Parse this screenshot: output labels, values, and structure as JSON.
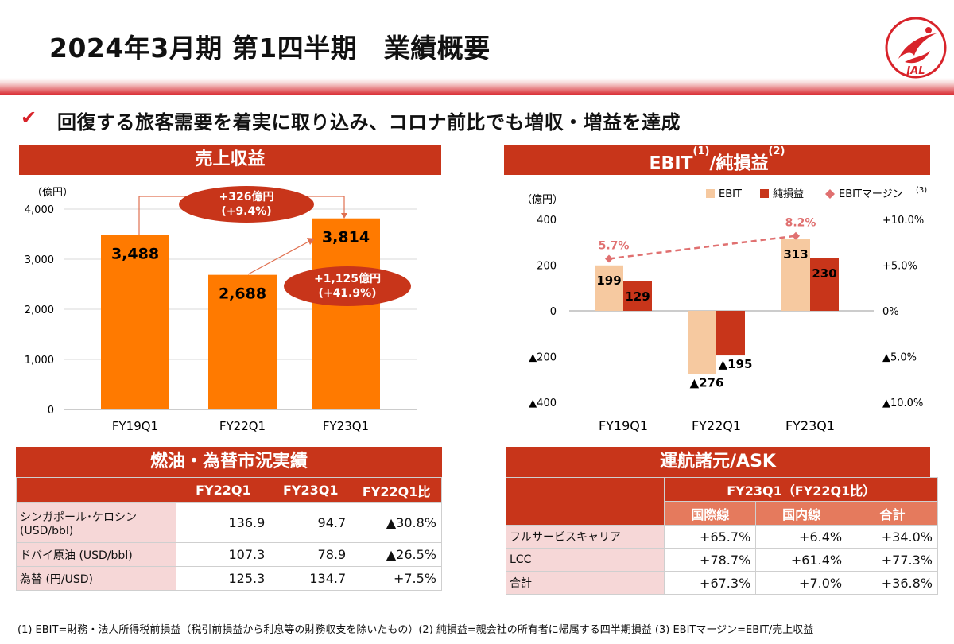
{
  "page": {
    "title": "2024年3月期 第1四半期　業績概要",
    "subtitle": "回復する旅客需要を着実に取り込み、コロナ前比でも増収・増益を達成",
    "logo_text": "JAL",
    "footnote": "(1) EBIT=財務・法人所得税前損益（税引前損益から利息等の財務収支を除いたもの）(2) 純損益=親会社の所有者に帰属する四半期損益 (3) EBITマージン=EBIT/売上収益"
  },
  "revenue": {
    "section_title": "売上収益",
    "unit": "（億円）",
    "callout_top": [
      "+326億円",
      "(+9.4%)"
    ],
    "callout_mid": [
      "+1,125億円",
      "(+41.9%)"
    ]
  },
  "ebit": {
    "section_title": "EBIT",
    "section_sup1": "(1)",
    "section_title2": "/純損益",
    "section_sup2": "(2)",
    "unit": "（億円）",
    "legend": [
      "EBIT",
      "純損益",
      "EBITマージン"
    ],
    "legend_sup": "(3)"
  },
  "chart_data": [
    {
      "type": "bar",
      "title": "売上収益",
      "ylabel": "（億円）",
      "categories": [
        "FY19Q1",
        "FY22Q1",
        "FY23Q1"
      ],
      "values": [
        3488,
        2688,
        3814
      ],
      "labels": [
        "3,488",
        "2,688",
        "3,814"
      ],
      "ylim": [
        0,
        4000
      ],
      "yticks": [
        "0",
        "1,000",
        "2,000",
        "3,000",
        "4,000"
      ],
      "grid": true,
      "color": "#ff7a00"
    },
    {
      "type": "bar",
      "title": "EBIT/純損益",
      "ylabel": "（億円）",
      "categories": [
        "FY19Q1",
        "FY22Q1",
        "FY23Q1"
      ],
      "series": [
        {
          "name": "EBIT",
          "values": [
            199,
            -276,
            313
          ],
          "labels": [
            "199",
            "▲276",
            "313"
          ],
          "color": "#f6c9a0"
        },
        {
          "name": "純損益",
          "values": [
            129,
            -195,
            230
          ],
          "labels": [
            "129",
            "▲195",
            "230"
          ],
          "color": "#c8351a"
        },
        {
          "name": "EBITマージン",
          "type": "line",
          "axis": "right",
          "values": [
            5.7,
            null,
            8.2
          ],
          "labels": [
            "5.7%",
            "",
            "8.2%"
          ],
          "color": "#e07070"
        }
      ],
      "ylim": [
        -400,
        400
      ],
      "yticks": [
        "▲400",
        "▲200",
        "0",
        "200",
        "400"
      ],
      "y2lim": [
        -10,
        10
      ],
      "y2ticks": [
        "▲10.0%",
        "▲5.0%",
        "0%",
        "+5.0%",
        "+10.0%"
      ],
      "legend_position": "top-right"
    }
  ],
  "fuel_table": {
    "section_title": "燃油・為替市況実績",
    "headers": [
      "",
      "FY22Q1",
      "FY23Q1",
      "FY22Q1比"
    ],
    "rows": [
      {
        "label": "シンガポール･ケロシン (USD/bbl)",
        "v1": "136.9",
        "v2": "94.7",
        "v3": "▲30.8%"
      },
      {
        "label": "ドバイ原油 (USD/bbl)",
        "v1": "107.3",
        "v2": "78.9",
        "v3": "▲26.5%"
      },
      {
        "label": "為替 (円/USD)",
        "v1": "125.3",
        "v2": "134.7",
        "v3": "+7.5%"
      }
    ]
  },
  "ops_table": {
    "section_title": "運航諸元/ASK",
    "group_header": "FY23Q1（FY22Q1比）",
    "headers": [
      "国際線",
      "国内線",
      "合計"
    ],
    "rows": [
      {
        "label": "フルサービスキャリア",
        "v1": "+65.7%",
        "v2": "+6.4%",
        "v3": "+34.0%"
      },
      {
        "label": "LCC",
        "v1": "+78.7%",
        "v2": "+61.4%",
        "v3": "+77.3%"
      },
      {
        "label": "合計",
        "v1": "+67.3%",
        "v2": "+7.0%",
        "v3": "+36.8%"
      }
    ]
  }
}
